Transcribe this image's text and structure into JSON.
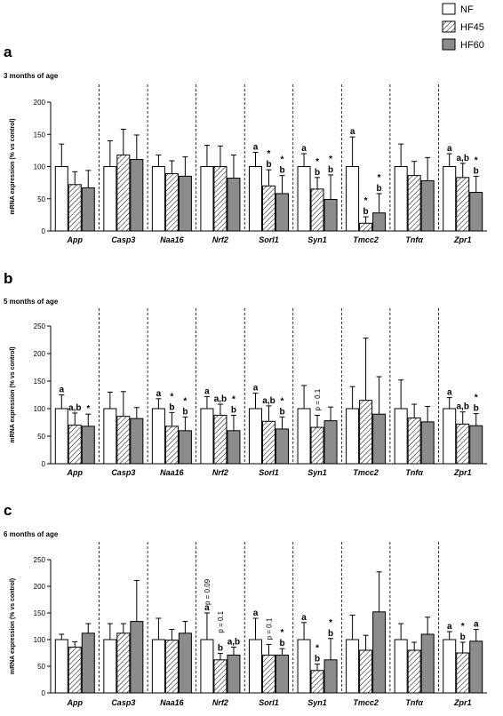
{
  "legend": [
    {
      "name": "NF",
      "fill": "#ffffff"
    },
    {
      "name": "HF45",
      "fill": "hatch"
    },
    {
      "name": "HF60",
      "fill": "#8c8c8c"
    }
  ],
  "chart_data": [
    {
      "type": "bar",
      "panel": "a",
      "subtitle": "3 months of age",
      "ylabel": "mRNA expression (% vs control)",
      "ylim": [
        0,
        200
      ],
      "yticks": [
        0,
        50,
        100,
        150,
        200
      ],
      "categories": [
        "App",
        "Casp3",
        "Naa16",
        "Nrf2",
        "Sorl1",
        "Syn1",
        "Tmcc2",
        "Tnfα",
        "Zpr1"
      ],
      "series": [
        {
          "name": "NF",
          "values": [
            100,
            100,
            100,
            100,
            100,
            100,
            100,
            100,
            100
          ],
          "err": [
            35,
            40,
            18,
            33,
            22,
            20,
            46,
            35,
            20
          ]
        },
        {
          "name": "HF45",
          "values": [
            72,
            118,
            89,
            100,
            70,
            65,
            12,
            86,
            83
          ],
          "err": [
            20,
            40,
            20,
            32,
            25,
            18,
            10,
            22,
            22
          ]
        },
        {
          "name": "HF60",
          "values": [
            67,
            111,
            85,
            82,
            58,
            49,
            28,
            78,
            60
          ],
          "err": [
            27,
            38,
            30,
            36,
            28,
            38,
            30,
            36,
            25
          ]
        }
      ],
      "annotations": [
        {
          "cat": 4,
          "bar": 0,
          "lines": [
            "a"
          ]
        },
        {
          "cat": 4,
          "bar": 1,
          "lines": [
            "*",
            "b"
          ]
        },
        {
          "cat": 4,
          "bar": 2,
          "lines": [
            "*",
            "b"
          ]
        },
        {
          "cat": 5,
          "bar": 0,
          "lines": [
            "a"
          ]
        },
        {
          "cat": 5,
          "bar": 1,
          "lines": [
            "*",
            "b"
          ]
        },
        {
          "cat": 5,
          "bar": 2,
          "lines": [
            "*",
            "b"
          ]
        },
        {
          "cat": 6,
          "bar": 0,
          "lines": [
            "a"
          ]
        },
        {
          "cat": 6,
          "bar": 1,
          "lines": [
            "*",
            "b"
          ]
        },
        {
          "cat": 6,
          "bar": 2,
          "lines": [
            "*",
            "b"
          ]
        },
        {
          "cat": 8,
          "bar": 0,
          "lines": [
            "a"
          ]
        },
        {
          "cat": 8,
          "bar": 1,
          "lines": [
            "a,b"
          ]
        },
        {
          "cat": 8,
          "bar": 2,
          "lines": [
            "*",
            "b"
          ]
        }
      ]
    },
    {
      "type": "bar",
      "panel": "b",
      "subtitle": "5 months of age",
      "ylabel": "mRNA expression (% vs control)",
      "ylim": [
        0,
        250
      ],
      "yticks": [
        0,
        50,
        100,
        150,
        200,
        250
      ],
      "categories": [
        "App",
        "Casp3",
        "Naa16",
        "Nrf2",
        "Sorl1",
        "Syn1",
        "Tmcc2",
        "Tnfα",
        "Zpr1"
      ],
      "series": [
        {
          "name": "NF",
          "values": [
            100,
            100,
            100,
            100,
            100,
            100,
            100,
            100,
            100
          ],
          "err": [
            25,
            30,
            18,
            22,
            28,
            42,
            40,
            52,
            20
          ]
        },
        {
          "name": "HF45",
          "values": [
            70,
            86,
            68,
            88,
            77,
            66,
            115,
            83,
            72
          ],
          "err": [
            22,
            45,
            25,
            20,
            28,
            22,
            113,
            25,
            22
          ]
        },
        {
          "name": "HF60",
          "values": [
            68,
            82,
            60,
            60,
            63,
            78,
            90,
            76,
            69
          ],
          "err": [
            22,
            20,
            25,
            28,
            22,
            25,
            68,
            28,
            22
          ]
        }
      ],
      "annotations": [
        {
          "cat": 0,
          "bar": 0,
          "lines": [
            "a"
          ]
        },
        {
          "cat": 0,
          "bar": 1,
          "lines": [
            "a,b"
          ]
        },
        {
          "cat": 0,
          "bar": 2,
          "lines": [
            "*"
          ]
        },
        {
          "cat": 2,
          "bar": 0,
          "lines": [
            "a"
          ]
        },
        {
          "cat": 2,
          "bar": 1,
          "lines": [
            "*",
            "b"
          ]
        },
        {
          "cat": 2,
          "bar": 2,
          "lines": [
            "*",
            "b"
          ]
        },
        {
          "cat": 3,
          "bar": 0,
          "lines": [
            "a"
          ]
        },
        {
          "cat": 3,
          "bar": 1,
          "lines": [
            "a,b"
          ]
        },
        {
          "cat": 3,
          "bar": 2,
          "lines": [
            "*",
            "b"
          ]
        },
        {
          "cat": 4,
          "bar": 0,
          "lines": [
            "a"
          ]
        },
        {
          "cat": 4,
          "bar": 1,
          "lines": [
            "a,b"
          ]
        },
        {
          "cat": 4,
          "bar": 2,
          "lines": [
            "*",
            "b"
          ]
        },
        {
          "cat": 5,
          "bar": 1,
          "lines": [
            "p = 0.1"
          ],
          "rotated": true
        },
        {
          "cat": 8,
          "bar": 0,
          "lines": [
            "a"
          ]
        },
        {
          "cat": 8,
          "bar": 1,
          "lines": [
            "a,b"
          ]
        },
        {
          "cat": 8,
          "bar": 2,
          "lines": [
            "*",
            "b"
          ]
        }
      ]
    },
    {
      "type": "bar",
      "panel": "c",
      "subtitle": "6 months of age",
      "ylabel": "mRNA expression (% vs control)",
      "ylim": [
        0,
        250
      ],
      "yticks": [
        0,
        50,
        100,
        150,
        200,
        250
      ],
      "categories": [
        "App",
        "Casp3",
        "Naa16",
        "Nrf2",
        "Sorl1",
        "Syn1",
        "Tmcc2",
        "Tnfα",
        "Zpr1"
      ],
      "series": [
        {
          "name": "NF",
          "values": [
            100,
            100,
            100,
            100,
            100,
            100,
            100,
            100,
            100
          ],
          "err": [
            10,
            30,
            40,
            50,
            40,
            32,
            46,
            30,
            15
          ]
        },
        {
          "name": "HF45",
          "values": [
            86,
            112,
            99,
            62,
            71,
            42,
            80,
            80,
            75
          ],
          "err": [
            10,
            18,
            20,
            12,
            20,
            12,
            28,
            15,
            20
          ]
        },
        {
          "name": "HF60",
          "values": [
            112,
            134,
            112,
            71,
            71,
            62,
            152,
            110,
            97
          ],
          "err": [
            18,
            77,
            22,
            15,
            12,
            40,
            75,
            32,
            22
          ]
        }
      ],
      "annotations": [
        {
          "cat": 3,
          "bar": 0,
          "lines": [
            "a"
          ]
        },
        {
          "cat": 3,
          "bar": 1,
          "lines": [
            "b"
          ]
        },
        {
          "cat": 3,
          "bar": 2,
          "lines": [
            "a,b"
          ]
        },
        {
          "cat": 3,
          "bar": 0,
          "lines": [
            "p = 0.09"
          ],
          "rotated": true,
          "offset": 6
        },
        {
          "cat": 3,
          "bar": 1,
          "lines": [
            "p = 0.1"
          ],
          "rotated": true,
          "offset": 20
        },
        {
          "cat": 4,
          "bar": 0,
          "lines": [
            "a"
          ]
        },
        {
          "cat": 4,
          "bar": 1,
          "lines": [
            "p = 0.1"
          ],
          "rotated": true
        },
        {
          "cat": 4,
          "bar": 2,
          "lines": [
            "*",
            "b"
          ]
        },
        {
          "cat": 5,
          "bar": 0,
          "lines": [
            "a"
          ]
        },
        {
          "cat": 5,
          "bar": 1,
          "lines": [
            "*",
            "b"
          ]
        },
        {
          "cat": 5,
          "bar": 2,
          "lines": [
            "*",
            "b"
          ]
        },
        {
          "cat": 8,
          "bar": 0,
          "lines": [
            "a"
          ]
        },
        {
          "cat": 8,
          "bar": 1,
          "lines": [
            "*",
            "b"
          ]
        },
        {
          "cat": 8,
          "bar": 2,
          "lines": [
            "a"
          ]
        }
      ]
    }
  ]
}
